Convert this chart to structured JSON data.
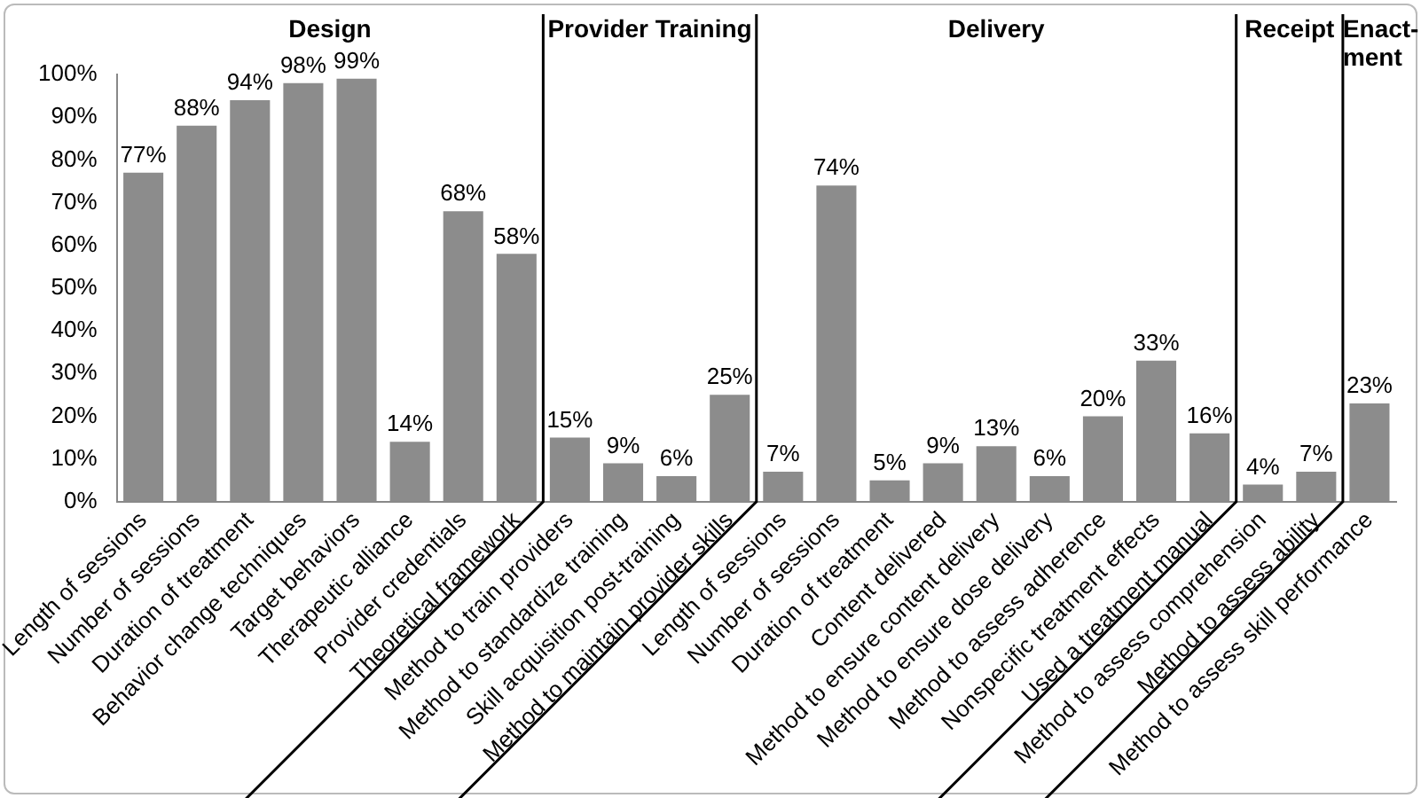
{
  "chart_data": {
    "type": "bar",
    "categories": [
      "Length of sessions",
      "Number of sessions",
      "Duration of treatment",
      "Behavior change techniques",
      "Target behaviors",
      "Therapeutic alliance",
      "Provider credentials",
      "Theoretical framework",
      "Method to train providers",
      "Method to standardize training",
      "Skill acquisition post-training",
      "Method to maintain provider skills",
      "Length of sessions",
      "Number of sessions",
      "Duration of treatment",
      "Content delivered",
      "Method to ensure content delivery",
      "Method to ensure dose delivery",
      "Method to assess adherence",
      "Nonspecific treatment effects",
      "Used a treatment manual",
      "Method to assess comprehension",
      "Method to assess ability",
      "Method to assess skill performance"
    ],
    "values": [
      77,
      88,
      94,
      98,
      99,
      14,
      68,
      58,
      15,
      9,
      6,
      25,
      7,
      74,
      5,
      9,
      13,
      6,
      20,
      33,
      16,
      4,
      7,
      23
    ],
    "value_labels": [
      "77%",
      "88%",
      "94%",
      "98%",
      "99%",
      "14%",
      "68%",
      "58%",
      "15%",
      "9%",
      "6%",
      "25%",
      "7%",
      "74%",
      "5%",
      "9%",
      "13%",
      "6%",
      "20%",
      "33%",
      "16%",
      "4%",
      "7%",
      "23%"
    ],
    "color": "#8c8c8c",
    "ylim": [
      0,
      100
    ],
    "yticks": [
      {
        "value": 0,
        "label": "0%"
      },
      {
        "value": 10,
        "label": "10%"
      },
      {
        "value": 20,
        "label": "20%"
      },
      {
        "value": 30,
        "label": "30%"
      },
      {
        "value": 40,
        "label": "40%"
      },
      {
        "value": 50,
        "label": "50%"
      },
      {
        "value": 60,
        "label": "60%"
      },
      {
        "value": 70,
        "label": "70%"
      },
      {
        "value": 80,
        "label": "80%"
      },
      {
        "value": 90,
        "label": "90%"
      },
      {
        "value": 100,
        "label": "100%"
      }
    ],
    "annotations": [
      "Design",
      "Provider Training",
      "Delivery",
      "Receipt",
      "Enact-ment"
    ],
    "grid": false,
    "legend": false
  }
}
